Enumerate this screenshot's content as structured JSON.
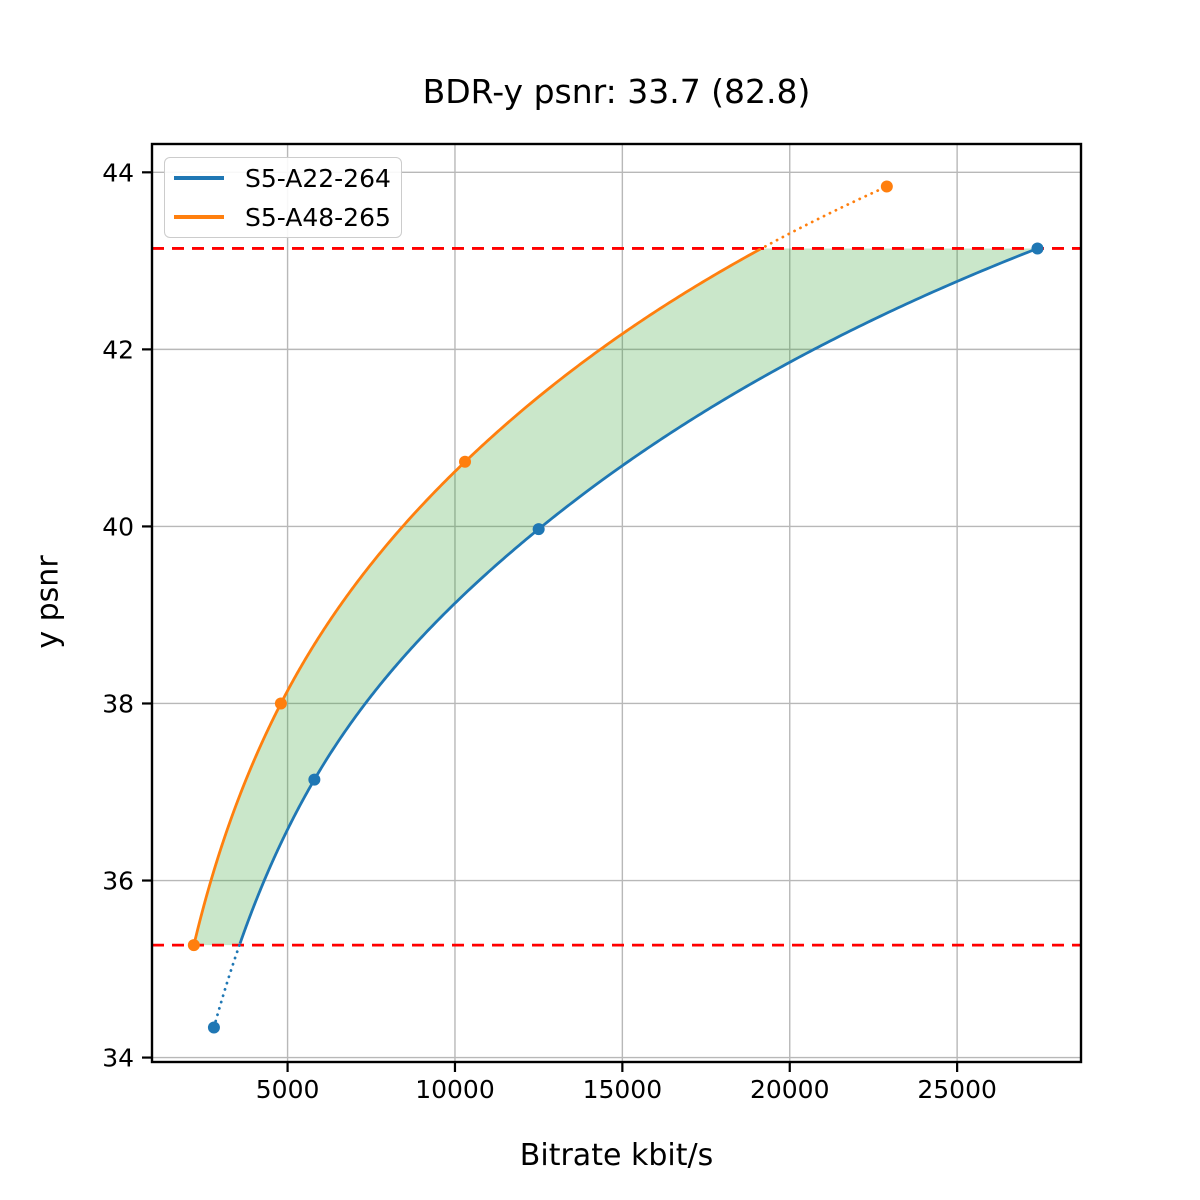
{
  "chart_data": {
    "type": "line",
    "title": "BDR-y psnr: 33.7 (82.8)",
    "xlabel": "Bitrate kbit/s",
    "ylabel": "y psnr",
    "xlim": [
      950,
      28700
    ],
    "ylim": [
      33.95,
      44.32
    ],
    "xticks": [
      5000,
      10000,
      15000,
      20000,
      25000
    ],
    "yticks": [
      34,
      36,
      38,
      40,
      42,
      44
    ],
    "grid": true,
    "grid_color": "#b8b8b8",
    "spine_color": "#000000",
    "interpolation": "pchip-logx",
    "legend_position": "upper-left",
    "series": [
      {
        "name": "S5-A22-264",
        "color": "#1f77b4",
        "x": [
          2800,
          5800,
          12500,
          27400
        ],
        "y": [
          34.34,
          37.14,
          39.97,
          43.14
        ]
      },
      {
        "name": "S5-A48-265",
        "color": "#ff7f0e",
        "x": [
          2200,
          4800,
          10300,
          22900
        ],
        "y": [
          35.27,
          38.0,
          40.73,
          43.84
        ]
      }
    ],
    "hlines": [
      {
        "y": 35.27,
        "color": "#ff0000",
        "style": "dashed",
        "meaning": "overlap-lower-bound"
      },
      {
        "y": 43.14,
        "color": "#ff0000",
        "style": "dashed",
        "meaning": "overlap-upper-bound"
      }
    ],
    "band": {
      "fill": "rgba(44, 160, 44, 0.25)",
      "upper_series": 1,
      "lower_series": 0,
      "clip_low": 35.27,
      "clip_high": 43.14
    }
  }
}
